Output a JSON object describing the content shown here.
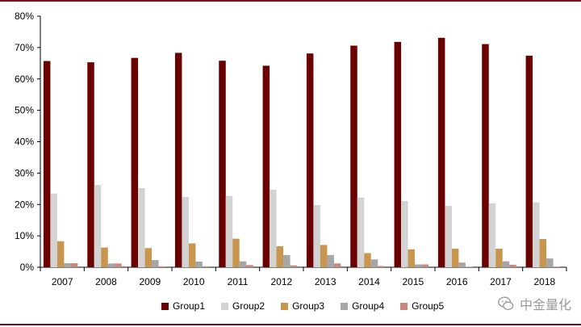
{
  "chart_data": {
    "type": "bar",
    "categories": [
      "2007",
      "2008",
      "2009",
      "2010",
      "2011",
      "2012",
      "2013",
      "2014",
      "2015",
      "2016",
      "2017",
      "2018"
    ],
    "series": [
      {
        "name": "Group1",
        "color": "#6b0000",
        "values": [
          65.7,
          65.3,
          66.7,
          68.3,
          65.8,
          64.2,
          68.1,
          70.6,
          71.8,
          73.1,
          71.1,
          67.4
        ]
      },
      {
        "name": "Group2",
        "color": "#d3d3d3",
        "values": [
          23.5,
          26.2,
          25.2,
          22.4,
          22.7,
          24.7,
          19.8,
          22.2,
          21.1,
          19.6,
          20.4,
          20.7
        ]
      },
      {
        "name": "Group3",
        "color": "#c8964f",
        "values": [
          8.3,
          6.3,
          6.1,
          7.6,
          9.1,
          6.7,
          7.1,
          4.5,
          5.7,
          5.9,
          5.9,
          9.0
        ]
      },
      {
        "name": "Group4",
        "color": "#a6a6a6",
        "values": [
          1.3,
          1.2,
          2.3,
          1.8,
          1.9,
          3.9,
          3.9,
          2.5,
          0.9,
          1.5,
          1.9,
          2.8
        ]
      },
      {
        "name": "Group5",
        "color": "#c98a7c",
        "values": [
          1.3,
          1.2,
          0.3,
          0.3,
          0.7,
          0.6,
          1.2,
          0.4,
          0.9,
          0.1,
          0.8,
          0.2
        ]
      }
    ],
    "ylim": [
      0,
      80
    ],
    "yticks": [
      "0%",
      "10%",
      "20%",
      "30%",
      "40%",
      "50%",
      "60%",
      "70%",
      "80%"
    ],
    "legend_position": "bottom",
    "grid": false
  },
  "watermark": {
    "text": "中金量化",
    "icon": "wechat-icon"
  }
}
